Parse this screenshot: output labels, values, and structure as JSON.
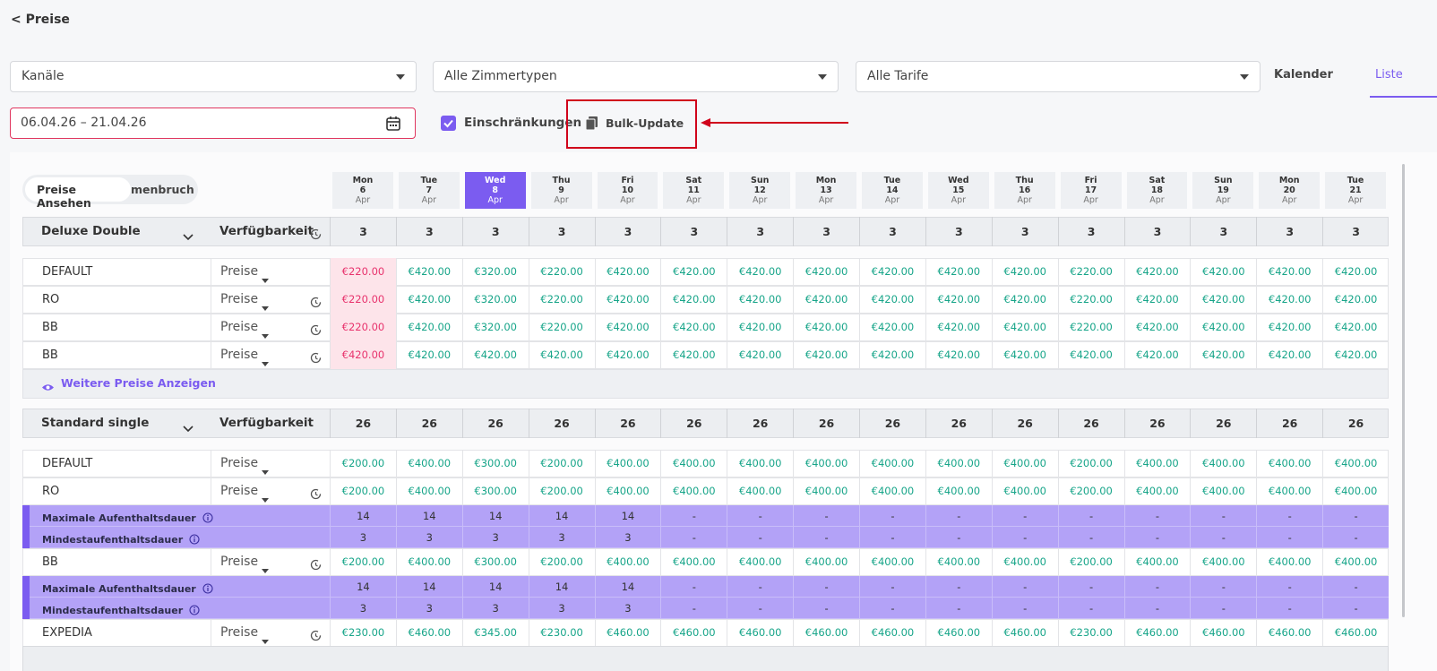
{
  "back_link": "< Preise",
  "filters": {
    "channels": "Kanäle",
    "room_types": "Alle Zimmertypen",
    "rates": "Alle Tarife"
  },
  "views": [
    "Kalender",
    "Liste"
  ],
  "date_range": "06.04.26 – 21.04.26",
  "restrictions_checkbox": "Einschränkungen",
  "bulk_update": "Bulk-Update",
  "toggle": [
    "Preise Ansehen",
    "menbruch"
  ],
  "dates": [
    {
      "weekday": "Mon",
      "day": 6,
      "month": "Apr"
    },
    {
      "weekday": "Tue",
      "day": 7,
      "month": "Apr"
    },
    {
      "weekday": "Wed",
      "day": 8,
      "month": "Apr"
    },
    {
      "weekday": "Thu",
      "day": 9,
      "month": "Apr"
    },
    {
      "weekday": "Fri",
      "day": 10,
      "month": "Apr"
    },
    {
      "weekday": "Sat",
      "day": 11,
      "month": "Apr"
    },
    {
      "weekday": "Sun",
      "day": 12,
      "month": "Apr"
    },
    {
      "weekday": "Mon",
      "day": 13,
      "month": "Apr"
    },
    {
      "weekday": "Tue",
      "day": 14,
      "month": "Apr"
    },
    {
      "weekday": "Wed",
      "day": 15,
      "month": "Apr"
    },
    {
      "weekday": "Thu",
      "day": 16,
      "month": "Apr"
    },
    {
      "weekday": "Fri",
      "day": 17,
      "month": "Apr"
    },
    {
      "weekday": "Sat",
      "day": 18,
      "month": "Apr"
    },
    {
      "weekday": "Sun",
      "day": 19,
      "month": "Apr"
    },
    {
      "weekday": "Mon",
      "day": 20,
      "month": "Apr"
    },
    {
      "weekday": "Tue",
      "day": 21,
      "month": "Apr"
    }
  ],
  "rooms": [
    {
      "name": "Deluxe Double",
      "availability_label": "Verfügbarkeit",
      "availability": [
        3,
        3,
        3,
        3,
        3,
        3,
        3,
        3,
        3,
        3,
        3,
        3,
        3,
        3,
        3,
        3
      ],
      "rates": [
        {
          "name": "DEFAULT",
          "selector": "Preise",
          "prices": [
            "€220.00",
            "€420.00",
            "€320.00",
            "€220.00",
            "€420.00",
            "€420.00",
            "€420.00",
            "€420.00",
            "€420.00",
            "€420.00",
            "€420.00",
            "€220.00",
            "€420.00",
            "€420.00",
            "€420.00",
            "€420.00"
          ]
        },
        {
          "name": "RO",
          "selector": "Preise",
          "prices": [
            "€220.00",
            "€420.00",
            "€320.00",
            "€220.00",
            "€420.00",
            "€420.00",
            "€420.00",
            "€420.00",
            "€420.00",
            "€420.00",
            "€420.00",
            "€220.00",
            "€420.00",
            "€420.00",
            "€420.00",
            "€420.00"
          ]
        },
        {
          "name": "BB",
          "selector": "Preise",
          "prices": [
            "€220.00",
            "€420.00",
            "€320.00",
            "€220.00",
            "€420.00",
            "€420.00",
            "€420.00",
            "€420.00",
            "€420.00",
            "€420.00",
            "€420.00",
            "€220.00",
            "€420.00",
            "€420.00",
            "€420.00",
            "€420.00"
          ]
        },
        {
          "name": "BB",
          "selector": "Preise",
          "prices": [
            "€420.00",
            "€420.00",
            "€420.00",
            "€420.00",
            "€420.00",
            "€420.00",
            "€420.00",
            "€420.00",
            "€420.00",
            "€420.00",
            "€420.00",
            "€420.00",
            "€420.00",
            "€420.00",
            "€420.00",
            "€420.00"
          ]
        }
      ],
      "more_link": "Weitere Preise Anzeigen"
    },
    {
      "name": "Standard single",
      "availability_label": "Verfügbarkeit",
      "availability": [
        26,
        26,
        26,
        26,
        26,
        26,
        26,
        26,
        26,
        26,
        26,
        26,
        26,
        26,
        26,
        26
      ],
      "rates": [
        {
          "name": "DEFAULT",
          "selector": "Preise",
          "prices": [
            "€200.00",
            "€400.00",
            "€300.00",
            "€200.00",
            "€400.00",
            "€400.00",
            "€400.00",
            "€400.00",
            "€400.00",
            "€400.00",
            "€400.00",
            "€200.00",
            "€400.00",
            "€400.00",
            "€400.00",
            "€400.00"
          ]
        },
        {
          "name": "RO",
          "selector": "Preise",
          "prices": [
            "€200.00",
            "€400.00",
            "€300.00",
            "€200.00",
            "€400.00",
            "€400.00",
            "€400.00",
            "€400.00",
            "€400.00",
            "€400.00",
            "€400.00",
            "€200.00",
            "€400.00",
            "€400.00",
            "€400.00",
            "€400.00"
          ],
          "restrictions": [
            {
              "label": "Maximale Aufenthaltsdauer",
              "values": [
                14,
                14,
                14,
                14,
                14,
                "-",
                "-",
                "-",
                "-",
                "-",
                "-",
                "-",
                "-",
                "-",
                "-",
                "-"
              ]
            },
            {
              "label": "Mindestaufenthaltsdauer",
              "values": [
                3,
                3,
                3,
                3,
                3,
                "-",
                "-",
                "-",
                "-",
                "-",
                "-",
                "-",
                "-",
                "-",
                "-",
                "-"
              ]
            }
          ]
        },
        {
          "name": "BB",
          "selector": "Preise",
          "prices": [
            "€200.00",
            "€400.00",
            "€300.00",
            "€200.00",
            "€400.00",
            "€400.00",
            "€400.00",
            "€400.00",
            "€400.00",
            "€400.00",
            "€400.00",
            "€200.00",
            "€400.00",
            "€400.00",
            "€400.00",
            "€400.00"
          ],
          "restrictions": [
            {
              "label": "Maximale Aufenthaltsdauer",
              "values": [
                14,
                14,
                14,
                14,
                14,
                "-",
                "-",
                "-",
                "-",
                "-",
                "-",
                "-",
                "-",
                "-",
                "-",
                "-"
              ]
            },
            {
              "label": "Mindestaufenthaltsdauer",
              "values": [
                3,
                3,
                3,
                3,
                3,
                "-",
                "-",
                "-",
                "-",
                "-",
                "-",
                "-",
                "-",
                "-",
                "-",
                "-"
              ]
            }
          ]
        },
        {
          "name": "EXPEDIA",
          "selector": "Preise",
          "prices": [
            "€230.00",
            "€460.00",
            "€345.00",
            "€230.00",
            "€460.00",
            "€460.00",
            "€460.00",
            "€460.00",
            "€460.00",
            "€460.00",
            "€460.00",
            "€230.00",
            "€460.00",
            "€460.00",
            "€460.00",
            "€460.00"
          ]
        }
      ]
    }
  ]
}
